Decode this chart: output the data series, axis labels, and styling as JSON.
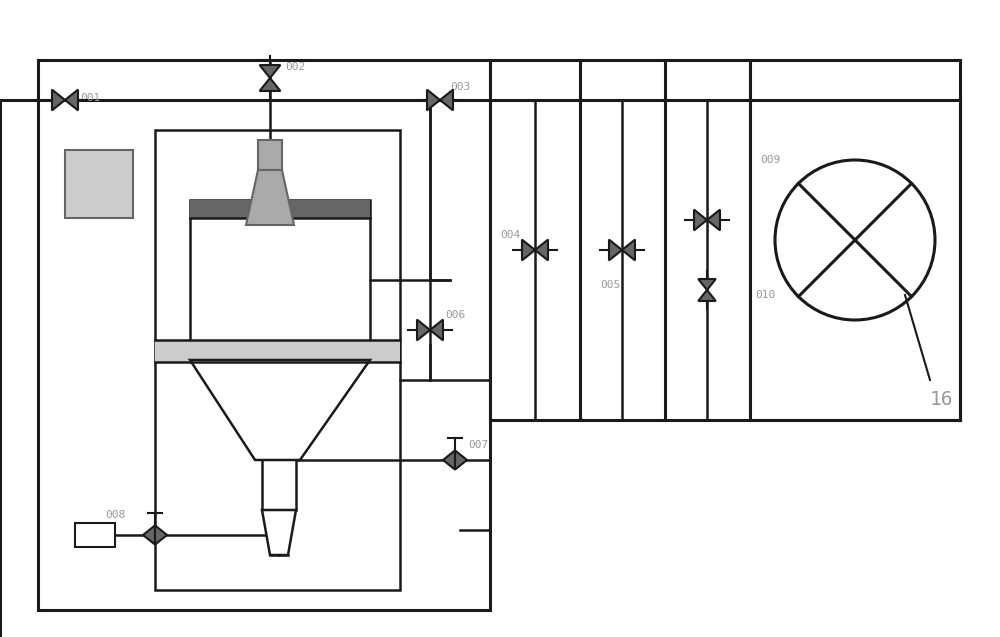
{
  "figsize": [
    10.0,
    6.37
  ],
  "dpi": 100,
  "lc": "#1a1a1a",
  "gc": "#aaaaaa",
  "dg": "#666666",
  "lg": "#cccccc",
  "vc": "#666666",
  "lw_main": 2.2,
  "lw_inner": 1.8,
  "label_color": "#999999",
  "label_fs": 8,
  "label_16_fs": 14
}
